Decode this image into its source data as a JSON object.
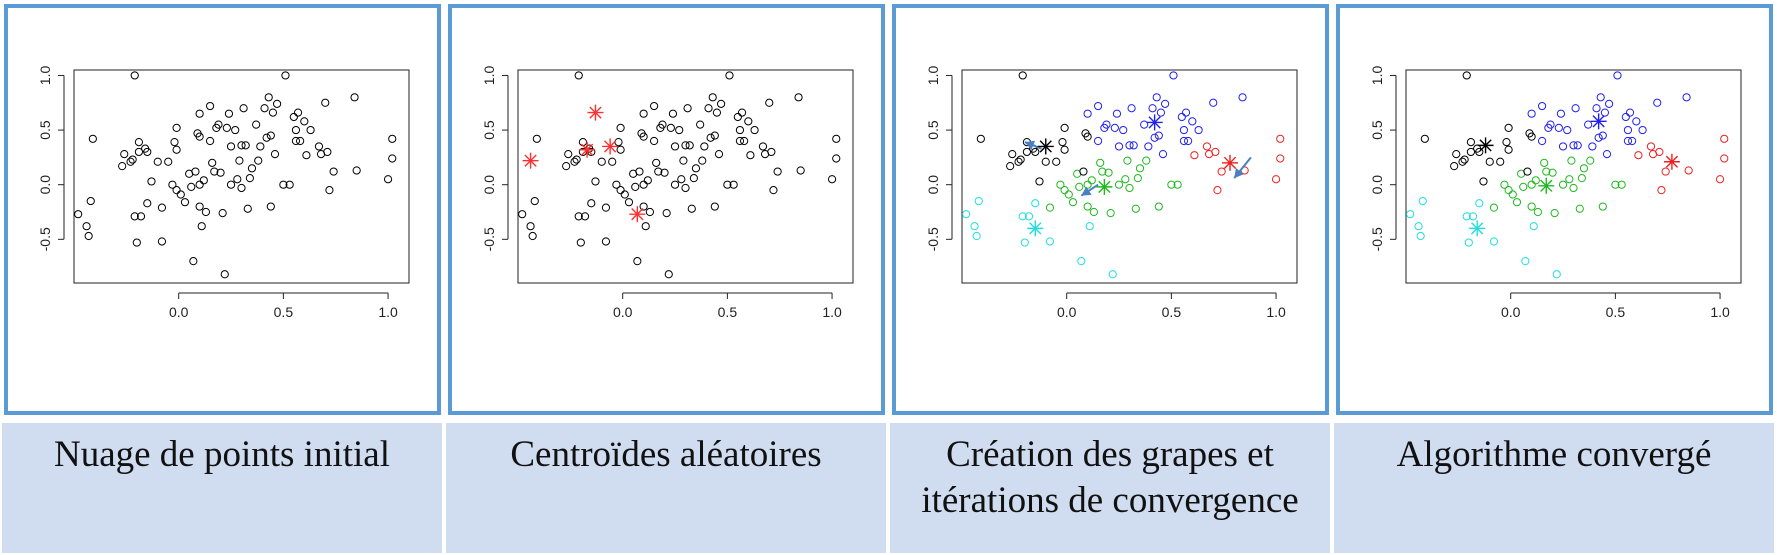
{
  "captions": [
    "Nuage de points initial",
    "Centroïdes aléatoires",
    "Création des grapes et\nitérations de convergence",
    "Algorithme convergé"
  ],
  "colors": {
    "frame": "#5b9bd5",
    "caption_bg": "#d0dcef",
    "points": "#000000",
    "centroid_random": "#ff3030",
    "arrow": "#4a7fc1",
    "cluster_black": "#000000",
    "cluster_blue": "#2020ee",
    "cluster_green": "#1fb81f",
    "cluster_cyan": "#22dddd",
    "cluster_red": "#ee2020"
  },
  "chart_data": [
    {
      "type": "scatter",
      "xlim": [
        -0.5,
        1.1
      ],
      "ylim": [
        -0.9,
        1.05
      ],
      "xticks": [
        "0.0",
        "0.5",
        "1.0"
      ],
      "yticks": [
        "-0.5",
        "0.0",
        "0.5",
        "1.0"
      ],
      "color_points_by": "none",
      "centroids": []
    },
    {
      "type": "scatter",
      "xlim": [
        -0.5,
        1.1
      ],
      "ylim": [
        -0.9,
        1.05
      ],
      "xticks": [
        "0.0",
        "0.5",
        "1.0"
      ],
      "yticks": [
        "-0.5",
        "0.0",
        "0.5",
        "1.0"
      ],
      "color_points_by": "none",
      "centroids": [
        {
          "x": -0.44,
          "y": 0.22,
          "color": "red"
        },
        {
          "x": -0.17,
          "y": 0.32,
          "color": "red"
        },
        {
          "x": -0.13,
          "y": 0.66,
          "color": "red"
        },
        {
          "x": -0.06,
          "y": 0.35,
          "color": "red"
        },
        {
          "x": 0.07,
          "y": -0.27,
          "color": "red"
        }
      ]
    },
    {
      "type": "scatter",
      "xlim": [
        -0.5,
        1.1
      ],
      "ylim": [
        -0.9,
        1.05
      ],
      "xticks": [
        "0.0",
        "0.5",
        "1.0"
      ],
      "yticks": [
        "-0.5",
        "0.0",
        "0.5",
        "1.0"
      ],
      "color_points_by": "cluster",
      "centroids": [
        {
          "x": -0.1,
          "y": 0.35,
          "color": "black"
        },
        {
          "x": 0.42,
          "y": 0.57,
          "color": "blue"
        },
        {
          "x": 0.18,
          "y": -0.02,
          "color": "green"
        },
        {
          "x": -0.15,
          "y": -0.4,
          "color": "cyan"
        },
        {
          "x": 0.78,
          "y": 0.2,
          "color": "red"
        }
      ],
      "arrows": [
        {
          "from": [
            -0.12,
            0.33
          ],
          "to": [
            -0.2,
            0.39
          ]
        },
        {
          "from": [
            0.15,
            0.0
          ],
          "to": [
            0.07,
            -0.1
          ]
        },
        {
          "from": [
            0.88,
            0.25
          ],
          "to": [
            0.8,
            0.06
          ]
        }
      ]
    },
    {
      "type": "scatter",
      "xlim": [
        -0.5,
        1.1
      ],
      "ylim": [
        -0.9,
        1.05
      ],
      "xticks": [
        "0.0",
        "0.5",
        "1.0"
      ],
      "yticks": [
        "-0.5",
        "0.0",
        "0.5",
        "1.0"
      ],
      "color_points_by": "cluster",
      "centroids": [
        {
          "x": -0.12,
          "y": 0.36,
          "color": "black"
        },
        {
          "x": 0.42,
          "y": 0.58,
          "color": "blue"
        },
        {
          "x": 0.17,
          "y": -0.01,
          "color": "green"
        },
        {
          "x": -0.16,
          "y": -0.4,
          "color": "cyan"
        },
        {
          "x": 0.77,
          "y": 0.21,
          "color": "red"
        }
      ]
    }
  ],
  "points": [
    {
      "x": -0.48,
      "y": -0.27,
      "c": "cyan"
    },
    {
      "x": -0.44,
      "y": -0.38,
      "c": "cyan"
    },
    {
      "x": -0.43,
      "y": -0.47,
      "c": "cyan"
    },
    {
      "x": -0.42,
      "y": -0.15,
      "c": "cyan"
    },
    {
      "x": -0.41,
      "y": 0.42,
      "c": "black"
    },
    {
      "x": -0.27,
      "y": 0.17,
      "c": "black"
    },
    {
      "x": -0.26,
      "y": 0.28,
      "c": "black"
    },
    {
      "x": -0.23,
      "y": 0.21,
      "c": "black"
    },
    {
      "x": -0.22,
      "y": 0.23,
      "c": "black"
    },
    {
      "x": -0.21,
      "y": 1.0,
      "c": "black"
    },
    {
      "x": -0.21,
      "y": -0.29,
      "c": "cyan"
    },
    {
      "x": -0.2,
      "y": -0.53,
      "c": "cyan"
    },
    {
      "x": -0.19,
      "y": 0.39,
      "c": "black"
    },
    {
      "x": -0.19,
      "y": 0.3,
      "c": "black"
    },
    {
      "x": -0.18,
      "y": -0.29,
      "c": "cyan"
    },
    {
      "x": -0.16,
      "y": 0.33,
      "c": "black"
    },
    {
      "x": -0.15,
      "y": 0.3,
      "c": "black"
    },
    {
      "x": -0.15,
      "y": -0.17,
      "c": "cyan"
    },
    {
      "x": -0.13,
      "y": 0.03,
      "c": "black"
    },
    {
      "x": -0.1,
      "y": 0.21,
      "c": "black"
    },
    {
      "x": -0.08,
      "y": -0.21,
      "c": "green"
    },
    {
      "x": -0.08,
      "y": -0.52,
      "c": "cyan"
    },
    {
      "x": -0.05,
      "y": 0.21,
      "c": "black"
    },
    {
      "x": -0.03,
      "y": 0.0,
      "c": "green"
    },
    {
      "x": -0.02,
      "y": 0.39,
      "c": "black"
    },
    {
      "x": -0.01,
      "y": 0.52,
      "c": "black"
    },
    {
      "x": -0.01,
      "y": 0.32,
      "c": "black"
    },
    {
      "x": -0.01,
      "y": -0.05,
      "c": "green"
    },
    {
      "x": 0.01,
      "y": -0.09,
      "c": "green"
    },
    {
      "x": 0.03,
      "y": -0.16,
      "c": "green"
    },
    {
      "x": 0.05,
      "y": 0.1,
      "c": "green"
    },
    {
      "x": 0.06,
      "y": -0.02,
      "c": "green"
    },
    {
      "x": 0.07,
      "y": -0.7,
      "c": "cyan"
    },
    {
      "x": 0.08,
      "y": 0.12,
      "c": "black"
    },
    {
      "x": 0.09,
      "y": 0.47,
      "c": "black"
    },
    {
      "x": 0.1,
      "y": 0.44,
      "c": "black"
    },
    {
      "x": 0.1,
      "y": 0.65,
      "c": "blue"
    },
    {
      "x": 0.1,
      "y": 0.0,
      "c": "green"
    },
    {
      "x": 0.1,
      "y": -0.2,
      "c": "green"
    },
    {
      "x": 0.11,
      "y": -0.38,
      "c": "cyan"
    },
    {
      "x": 0.12,
      "y": 0.04,
      "c": "green"
    },
    {
      "x": 0.13,
      "y": -0.25,
      "c": "green"
    },
    {
      "x": 0.15,
      "y": 0.4,
      "c": "blue"
    },
    {
      "x": 0.15,
      "y": 0.72,
      "c": "blue"
    },
    {
      "x": 0.16,
      "y": 0.2,
      "c": "green"
    },
    {
      "x": 0.17,
      "y": 0.12,
      "c": "green"
    },
    {
      "x": 0.18,
      "y": 0.52,
      "c": "blue"
    },
    {
      "x": 0.19,
      "y": 0.55,
      "c": "blue"
    },
    {
      "x": 0.2,
      "y": 0.11,
      "c": "green"
    },
    {
      "x": 0.21,
      "y": -0.26,
      "c": "green"
    },
    {
      "x": 0.22,
      "y": -0.82,
      "c": "cyan"
    },
    {
      "x": 0.23,
      "y": 0.52,
      "c": "blue"
    },
    {
      "x": 0.24,
      "y": 0.65,
      "c": "blue"
    },
    {
      "x": 0.25,
      "y": 0.35,
      "c": "blue"
    },
    {
      "x": 0.25,
      "y": 0.0,
      "c": "green"
    },
    {
      "x": 0.27,
      "y": 0.5,
      "c": "blue"
    },
    {
      "x": 0.28,
      "y": 0.05,
      "c": "green"
    },
    {
      "x": 0.29,
      "y": 0.22,
      "c": "green"
    },
    {
      "x": 0.3,
      "y": 0.36,
      "c": "blue"
    },
    {
      "x": 0.3,
      "y": -0.03,
      "c": "green"
    },
    {
      "x": 0.31,
      "y": 0.7,
      "c": "blue"
    },
    {
      "x": 0.32,
      "y": 0.36,
      "c": "blue"
    },
    {
      "x": 0.33,
      "y": -0.22,
      "c": "green"
    },
    {
      "x": 0.34,
      "y": 0.06,
      "c": "green"
    },
    {
      "x": 0.35,
      "y": 0.15,
      "c": "green"
    },
    {
      "x": 0.37,
      "y": 0.55,
      "c": "blue"
    },
    {
      "x": 0.38,
      "y": 0.22,
      "c": "green"
    },
    {
      "x": 0.39,
      "y": 0.35,
      "c": "blue"
    },
    {
      "x": 0.41,
      "y": 0.7,
      "c": "blue"
    },
    {
      "x": 0.42,
      "y": 0.43,
      "c": "blue"
    },
    {
      "x": 0.43,
      "y": 0.8,
      "c": "blue"
    },
    {
      "x": 0.44,
      "y": 0.45,
      "c": "blue"
    },
    {
      "x": 0.44,
      "y": -0.2,
      "c": "green"
    },
    {
      "x": 0.45,
      "y": 0.66,
      "c": "blue"
    },
    {
      "x": 0.46,
      "y": 0.28,
      "c": "blue"
    },
    {
      "x": 0.47,
      "y": 0.74,
      "c": "blue"
    },
    {
      "x": 0.5,
      "y": 0.0,
      "c": "green"
    },
    {
      "x": 0.51,
      "y": 1.0,
      "c": "blue"
    },
    {
      "x": 0.53,
      "y": 0.0,
      "c": "green"
    },
    {
      "x": 0.55,
      "y": 0.62,
      "c": "blue"
    },
    {
      "x": 0.56,
      "y": 0.5,
      "c": "blue"
    },
    {
      "x": 0.56,
      "y": 0.4,
      "c": "blue"
    },
    {
      "x": 0.57,
      "y": 0.66,
      "c": "blue"
    },
    {
      "x": 0.58,
      "y": 0.4,
      "c": "blue"
    },
    {
      "x": 0.6,
      "y": 0.58,
      "c": "blue"
    },
    {
      "x": 0.61,
      "y": 0.27,
      "c": "red"
    },
    {
      "x": 0.63,
      "y": 0.5,
      "c": "blue"
    },
    {
      "x": 0.67,
      "y": 0.35,
      "c": "red"
    },
    {
      "x": 0.68,
      "y": 0.28,
      "c": "red"
    },
    {
      "x": 0.7,
      "y": 0.75,
      "c": "blue"
    },
    {
      "x": 0.71,
      "y": 0.3,
      "c": "red"
    },
    {
      "x": 0.72,
      "y": -0.05,
      "c": "red"
    },
    {
      "x": 0.74,
      "y": 0.12,
      "c": "red"
    },
    {
      "x": 0.84,
      "y": 0.8,
      "c": "blue"
    },
    {
      "x": 0.85,
      "y": 0.13,
      "c": "red"
    },
    {
      "x": 1.0,
      "y": 0.05,
      "c": "red"
    },
    {
      "x": 1.02,
      "y": 0.42,
      "c": "red"
    },
    {
      "x": 1.02,
      "y": 0.24,
      "c": "red"
    }
  ]
}
